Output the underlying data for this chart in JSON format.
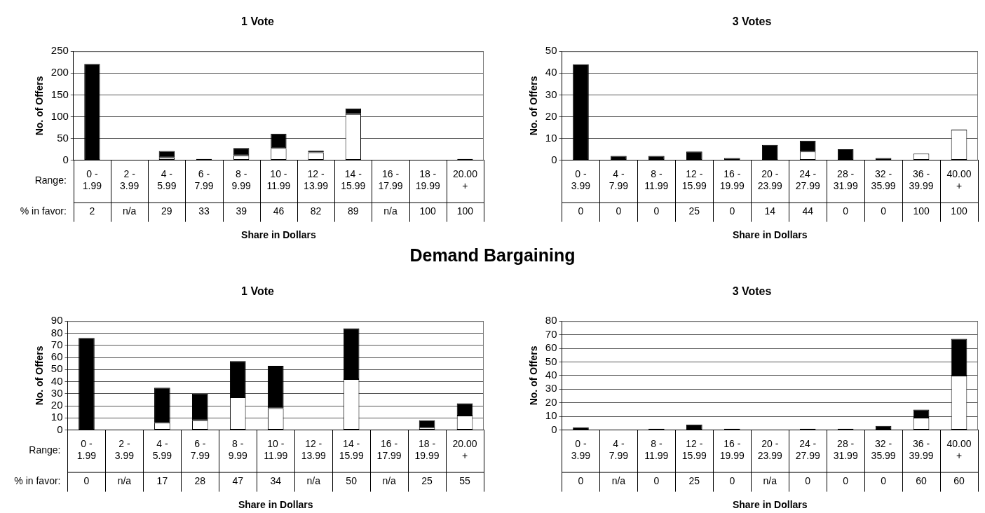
{
  "chart_data": [
    {
      "type": "bar",
      "title": "1 Vote",
      "xlabel": "Share in Dollars",
      "ylabel": "No. of Offers",
      "stacked": true,
      "grid": "y",
      "legend": false,
      "categories": [
        "0 - 1.99",
        "2 - 3.99",
        "4 - 5.99",
        "6 - 7.99",
        "8 - 9.99",
        "10 - 11.99",
        "12 - 13.99",
        "14 - 15.99",
        "16 - 17.99",
        "18 - 19.99",
        "20.00 +"
      ],
      "series": [
        {
          "color": "#ffffff",
          "values": [
            0,
            0,
            6,
            0,
            11,
            28,
            18,
            106,
            0,
            0,
            0
          ]
        },
        {
          "color": "#000000",
          "values": [
            221,
            0,
            15,
            3,
            17,
            33,
            4,
            13,
            0,
            1,
            3
          ]
        }
      ],
      "ylim": [
        0,
        250
      ],
      "yticks": [
        0,
        50,
        100,
        150,
        200,
        250
      ],
      "annotations": [
        "Range:",
        "% in favor:",
        "2",
        "n/a",
        "29",
        "33",
        "39",
        "46",
        "82",
        "89",
        "n/a",
        "100",
        "100"
      ]
    },
    {
      "type": "bar",
      "title": "3 Votes",
      "xlabel": "Share in Dollars",
      "ylabel": "No. of Offers",
      "stacked": true,
      "grid": "y",
      "legend": false,
      "categories": [
        "0 - 3.99",
        "4 - 7.99",
        "8 - 11.99",
        "12 - 15.99",
        "16 - 19.99",
        "20 - 23.99",
        "24 - 27.99",
        "28 - 31.99",
        "32 - 35.99",
        "36 - 39.99",
        "40.00 +"
      ],
      "series": [
        {
          "color": "#ffffff",
          "values": [
            0,
            0,
            0,
            0,
            0,
            0,
            4,
            0,
            0,
            3,
            14
          ]
        },
        {
          "color": "#000000",
          "values": [
            44,
            2,
            2,
            4,
            1,
            7,
            5,
            5,
            1,
            0,
            0
          ]
        }
      ],
      "ylim": [
        0,
        50
      ],
      "yticks": [
        0,
        10,
        20,
        30,
        40,
        50
      ],
      "annotations": [
        "0",
        "0",
        "0",
        "25",
        "0",
        "14",
        "44",
        "0",
        "0",
        "100",
        "100"
      ]
    },
    {
      "type": "bar",
      "title": "1 Vote",
      "xlabel": "Share in Dollars",
      "ylabel": "No. of Offers",
      "stacked": true,
      "grid": "y",
      "legend": false,
      "categories": [
        "0 - 1.99",
        "2 - 3.99",
        "4 - 5.99",
        "6 - 7.99",
        "8 - 9.99",
        "10 - 11.99",
        "12 - 13.99",
        "14 - 15.99",
        "16 - 17.99",
        "18 - 19.99",
        "20.00 +"
      ],
      "series": [
        {
          "color": "#ffffff",
          "values": [
            0,
            0,
            6,
            8,
            27,
            18,
            0,
            42,
            0,
            2,
            12
          ]
        },
        {
          "color": "#000000",
          "values": [
            76,
            0,
            29,
            22,
            30,
            35,
            0,
            42,
            0,
            6,
            10
          ]
        }
      ],
      "ylim": [
        0,
        90
      ],
      "yticks": [
        0,
        10,
        20,
        30,
        40,
        50,
        60,
        70,
        80,
        90
      ],
      "annotations": [
        "Range:",
        "% in favor:",
        "Demand Bargaining",
        "0",
        "n/a",
        "17",
        "28",
        "47",
        "34",
        "n/a",
        "50",
        "n/a",
        "25",
        "55"
      ]
    },
    {
      "type": "bar",
      "title": "3 Votes",
      "xlabel": "Share in Dollars",
      "ylabel": "No. of Offers",
      "stacked": true,
      "grid": "y",
      "legend": false,
      "categories": [
        "0 - 3.99",
        "4 - 7.99",
        "8 - 11.99",
        "12 - 15.99",
        "16 - 19.99",
        "20 - 23.99",
        "24 - 27.99",
        "28 - 31.99",
        "32 - 35.99",
        "36 - 39.99",
        "40.00 +"
      ],
      "series": [
        {
          "color": "#ffffff",
          "values": [
            0,
            0,
            0,
            0,
            0,
            0,
            0,
            0,
            0,
            9,
            40
          ]
        },
        {
          "color": "#000000",
          "values": [
            2,
            0,
            1,
            4,
            1,
            0,
            1,
            1,
            3,
            6,
            27
          ]
        }
      ],
      "ylim": [
        0,
        80
      ],
      "yticks": [
        0,
        10,
        20,
        30,
        40,
        50,
        60,
        70,
        80
      ],
      "annotations": [
        "0",
        "n/a",
        "0",
        "25",
        "0",
        "n/a",
        "0",
        "0",
        "0",
        "60",
        "60"
      ]
    }
  ]
}
